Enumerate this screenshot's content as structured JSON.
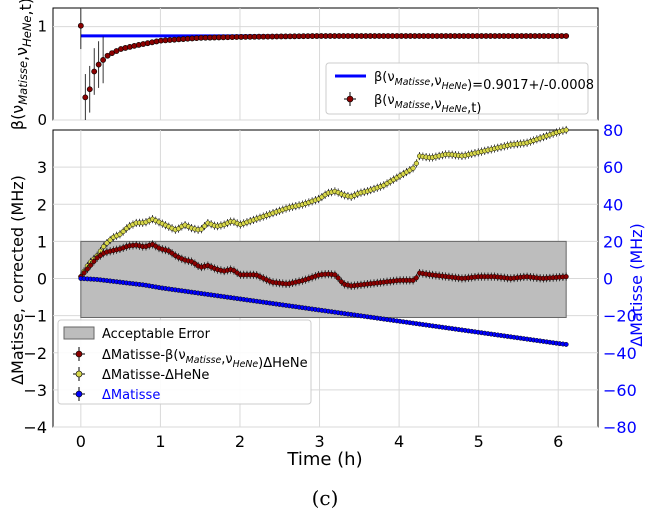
{
  "figure": {
    "caption": "(c)"
  },
  "chart_data": [
    {
      "type": "line",
      "panel": "top",
      "ylabel": "β(ν_Matisse,ν_HeNe,t)",
      "ylabel_parts": {
        "base": "β(ν",
        "sub1": "Matisse",
        "mid": ",ν",
        "sub2": "HeNe",
        "end": ",t)"
      },
      "xlim": [
        -0.35,
        6.5
      ],
      "ylim": [
        0,
        1.2
      ],
      "yticks": [
        "0",
        "1"
      ],
      "ytick_values": [
        0,
        1
      ],
      "grid": true,
      "legend_position": "lower-right",
      "series": [
        {
          "name": "β(ν_Matisse,ν_HeNe)=0.9017+/-0.0008",
          "legend_parts": {
            "base": "β(ν",
            "sub1": "Matisse",
            "mid": ",ν",
            "sub2": "HeNe",
            "end": ")=0.9017+/-0.0008"
          },
          "kind": "line",
          "color": "#0000ff",
          "x": [
            0,
            6.1
          ],
          "y": [
            0.9017,
            0.9017
          ]
        },
        {
          "name": "β(ν_Matisse,ν_HeNe,t)",
          "legend_parts": {
            "base": "β(ν",
            "sub1": "Matisse",
            "mid": ",ν",
            "sub2": "HeNe",
            "end": ",t)"
          },
          "kind": "errorbar",
          "color": "#8b0000",
          "x": [
            0.0,
            0.03,
            0.08,
            0.12,
            0.18,
            0.25,
            0.35,
            0.5,
            0.7,
            1.0,
            1.5,
            2.0,
            3.0,
            4.0,
            5.0,
            6.1
          ],
          "y": [
            1.01,
            0.45,
            0.05,
            0.4,
            0.55,
            0.62,
            0.7,
            0.76,
            0.8,
            0.85,
            0.88,
            0.89,
            0.9,
            0.9,
            0.9,
            0.9
          ]
        }
      ]
    },
    {
      "type": "line",
      "panel": "bottom",
      "xlabel": "Time (h)",
      "ylabel": "ΔMatisse, corrected (MHz)",
      "y2label": "ΔMatisse (MHz)",
      "xlim": [
        -0.35,
        6.5
      ],
      "ylim": [
        -4,
        4
      ],
      "y2lim": [
        -80,
        80
      ],
      "xticks": [
        "0",
        "1",
        "2",
        "3",
        "4",
        "5",
        "6"
      ],
      "xtick_values": [
        0,
        1,
        2,
        3,
        4,
        5,
        6
      ],
      "yticks": [
        "−4",
        "−3",
        "−2",
        "−1",
        "0",
        "1",
        "2",
        "3"
      ],
      "ytick_values": [
        -4,
        -3,
        -2,
        -1,
        0,
        1,
        2,
        3
      ],
      "y2ticks": [
        "−80",
        "−60",
        "−40",
        "−20",
        "0",
        "20",
        "40",
        "60",
        "80"
      ],
      "y2tick_values": [
        -80,
        -60,
        -40,
        -20,
        0,
        20,
        40,
        60,
        80
      ],
      "grid": true,
      "legend_position": "lower-left",
      "error_band": {
        "name": "Acceptable Error",
        "x": [
          0,
          6.1
        ],
        "y": [
          -1.05,
          1.0
        ],
        "color": "#bdbdbd"
      },
      "series": [
        {
          "name": "ΔMatisse-β(ν_Matisse,ν_HeNe)ΔHeNe",
          "legend_parts": {
            "base": "ΔMatisse-β(ν",
            "sub1": "Matisse",
            "mid": ",ν",
            "sub2": "HeNe",
            "end": ")ΔHeNe"
          },
          "kind": "errorbar",
          "axis": "left",
          "color": "#8b0000",
          "x": [
            0.0,
            0.1,
            0.2,
            0.3,
            0.4,
            0.5,
            0.6,
            0.7,
            0.8,
            0.9,
            1.0,
            1.1,
            1.2,
            1.3,
            1.4,
            1.5,
            1.6,
            1.7,
            1.8,
            1.9,
            2.0,
            2.2,
            2.4,
            2.6,
            2.8,
            3.0,
            3.1,
            3.2,
            3.3,
            3.4,
            3.6,
            3.8,
            4.0,
            4.2,
            4.25,
            4.4,
            4.6,
            4.8,
            5.0,
            5.2,
            5.4,
            5.6,
            5.8,
            6.1
          ],
          "y": [
            0.05,
            0.3,
            0.55,
            0.7,
            0.75,
            0.8,
            0.88,
            0.9,
            0.85,
            0.92,
            0.8,
            0.75,
            0.6,
            0.5,
            0.45,
            0.3,
            0.35,
            0.25,
            0.2,
            0.25,
            0.1,
            0.1,
            -0.1,
            -0.15,
            -0.05,
            0.1,
            0.12,
            0.1,
            -0.15,
            -0.2,
            -0.15,
            -0.1,
            -0.05,
            -0.05,
            0.15,
            0.1,
            0.05,
            0.0,
            0.05,
            0.05,
            0.0,
            0.05,
            0.0,
            0.05
          ]
        },
        {
          "name": "ΔMatisse-ΔHeNe",
          "kind": "errorbar",
          "axis": "right",
          "color": "#d8d84a",
          "x": [
            0.0,
            0.1,
            0.2,
            0.3,
            0.4,
            0.5,
            0.6,
            0.7,
            0.8,
            0.9,
            1.0,
            1.1,
            1.2,
            1.3,
            1.4,
            1.5,
            1.6,
            1.7,
            1.8,
            1.9,
            2.0,
            2.2,
            2.4,
            2.6,
            2.8,
            3.0,
            3.1,
            3.2,
            3.3,
            3.4,
            3.5,
            3.6,
            3.8,
            4.0,
            4.2,
            4.25,
            4.4,
            4.6,
            4.8,
            5.0,
            5.2,
            5.4,
            5.6,
            5.8,
            6.0,
            6.1
          ],
          "y": [
            1,
            8,
            12,
            18,
            22,
            24,
            28,
            30,
            30,
            32,
            30,
            28,
            26,
            29,
            27,
            26,
            30,
            28,
            29,
            31,
            29,
            32,
            35,
            38,
            40,
            43,
            46,
            47,
            45,
            44,
            46,
            47,
            50,
            55,
            60,
            66,
            65,
            67,
            66,
            68,
            70,
            72,
            73,
            76,
            79,
            80
          ]
        },
        {
          "name": "ΔMatisse",
          "kind": "errorbar",
          "axis": "right",
          "color": "#0000ff",
          "x": [
            0.0,
            0.2,
            0.4,
            0.6,
            0.8,
            1.0,
            1.5,
            2.0,
            2.5,
            3.0,
            3.5,
            4.0,
            4.5,
            5.0,
            5.5,
            6.0,
            6.1
          ],
          "y": [
            0,
            -0.5,
            -1.5,
            -2.5,
            -3.5,
            -5,
            -8,
            -11,
            -14,
            -17,
            -20,
            -23,
            -26,
            -29,
            -32,
            -35,
            -35.5
          ]
        }
      ]
    }
  ]
}
